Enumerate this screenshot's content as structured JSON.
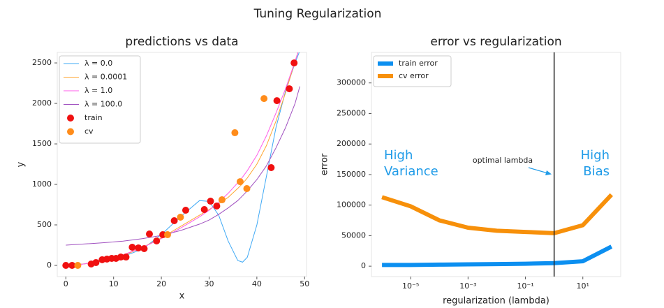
{
  "title": "Tuning Regularization",
  "chart_data": [
    {
      "type": "line",
      "title": "predictions vs data",
      "xlabel": "x",
      "ylabel": "y",
      "xlim": [
        -1.8,
        50.4
      ],
      "ylim": [
        -138,
        2630
      ],
      "xticks": [
        0,
        10,
        20,
        30,
        40,
        50
      ],
      "yticks": [
        0,
        500,
        1000,
        1500,
        2000,
        2500
      ],
      "legend": "upper left",
      "line_width": 1,
      "x": [
        0,
        4,
        8,
        12,
        16,
        20,
        24,
        28,
        30,
        32,
        34,
        36,
        37,
        38,
        40,
        42,
        44,
        46,
        48,
        49
      ],
      "series": [
        {
          "name": "λ = 0.0",
          "color": "#3fa9f5",
          "values": [
            0,
            20,
            70,
            110,
            200,
            380,
            600,
            800,
            790,
            620,
            300,
            60,
            40,
            100,
            500,
            1100,
            1700,
            2150,
            2500,
            2650
          ]
        },
        {
          "name": "λ = 0.0001",
          "color": "#ffa733",
          "values": [
            0,
            20,
            70,
            120,
            220,
            340,
            480,
            620,
            690,
            760,
            840,
            950,
            1010,
            1080,
            1250,
            1480,
            1780,
            2130,
            2520,
            2700
          ]
        },
        {
          "name": "λ = 1.0",
          "color": "#ff5ce8",
          "values": [
            -10,
            20,
            70,
            130,
            220,
            330,
            460,
            600,
            680,
            780,
            890,
            1020,
            1090,
            1170,
            1360,
            1600,
            1880,
            2180,
            2520,
            2700
          ]
        },
        {
          "name": "λ = 100.0",
          "color": "#a050c0",
          "values": [
            250,
            265,
            280,
            300,
            330,
            370,
            430,
            510,
            560,
            630,
            710,
            800,
            860,
            920,
            1060,
            1230,
            1450,
            1700,
            2000,
            2210
          ]
        },
        {
          "name": "train",
          "color": "#f01010",
          "mode": "markers",
          "x": [
            0,
            1.3,
            5.3,
            6.3,
            7.6,
            8.6,
            9.6,
            10.5,
            11.5,
            12.6,
            13.9,
            15.2,
            16.4,
            17.5,
            19,
            20.3,
            22.7,
            25.1,
            29,
            30.3,
            31.6,
            43,
            44.2,
            46.8,
            47.8
          ],
          "values": [
            0,
            0,
            17,
            35,
            70,
            78,
            86,
            86,
            103,
            103,
            224,
            216,
            207,
            388,
            302,
            379,
            552,
            681,
            690,
            793,
            733,
            1207,
            2034,
            2181,
            2500
          ]
        },
        {
          "name": "cv",
          "color": "#ff8c1a",
          "mode": "markers",
          "x": [
            2.5,
            21.3,
            24,
            32.7,
            35.4,
            36.5,
            37.9,
            41.5
          ],
          "values": [
            0,
            379,
            595,
            810,
            1638,
            1034,
            948,
            2060
          ]
        }
      ]
    },
    {
      "type": "line",
      "title": "error vs regularization",
      "xlabel": "regularization (lambda)",
      "ylabel": "error",
      "xlog": true,
      "xlim": [
        4.3e-07,
        209
      ],
      "ylim": [
        -17000,
        350000
      ],
      "xticks": [
        {
          "value": 1e-05,
          "label": "10⁻⁵"
        },
        {
          "value": 0.001,
          "label": "10⁻³"
        },
        {
          "value": 0.1,
          "label": "10⁻¹"
        },
        {
          "value": 10,
          "label": "10¹"
        }
      ],
      "yticks": [
        0,
        50000,
        100000,
        150000,
        200000,
        250000,
        300000
      ],
      "legend": "upper left",
      "line_width": 6,
      "x": [
        1e-06,
        1e-05,
        0.0001,
        0.001,
        0.01,
        0.1,
        1,
        10,
        100
      ],
      "series": [
        {
          "name": "train error",
          "color": "#0c8ff0",
          "values": [
            2000,
            2000,
            2500,
            3000,
            3500,
            4000,
            5000,
            8000,
            32000
          ]
        },
        {
          "name": "cv error",
          "color": "#f7900a",
          "values": [
            113000,
            98000,
            75000,
            63000,
            58000,
            56000,
            54000,
            67000,
            117000
          ]
        }
      ],
      "vline": 1,
      "annotations": [
        {
          "lines": [
            "optimal lambda"
          ],
          "color": "#222222"
        },
        {
          "lines": [
            "High",
            "Variance"
          ],
          "color": "#1f9be8"
        },
        {
          "lines": [
            "High",
            "Bias"
          ],
          "color": "#1f9be8"
        }
      ]
    }
  ]
}
